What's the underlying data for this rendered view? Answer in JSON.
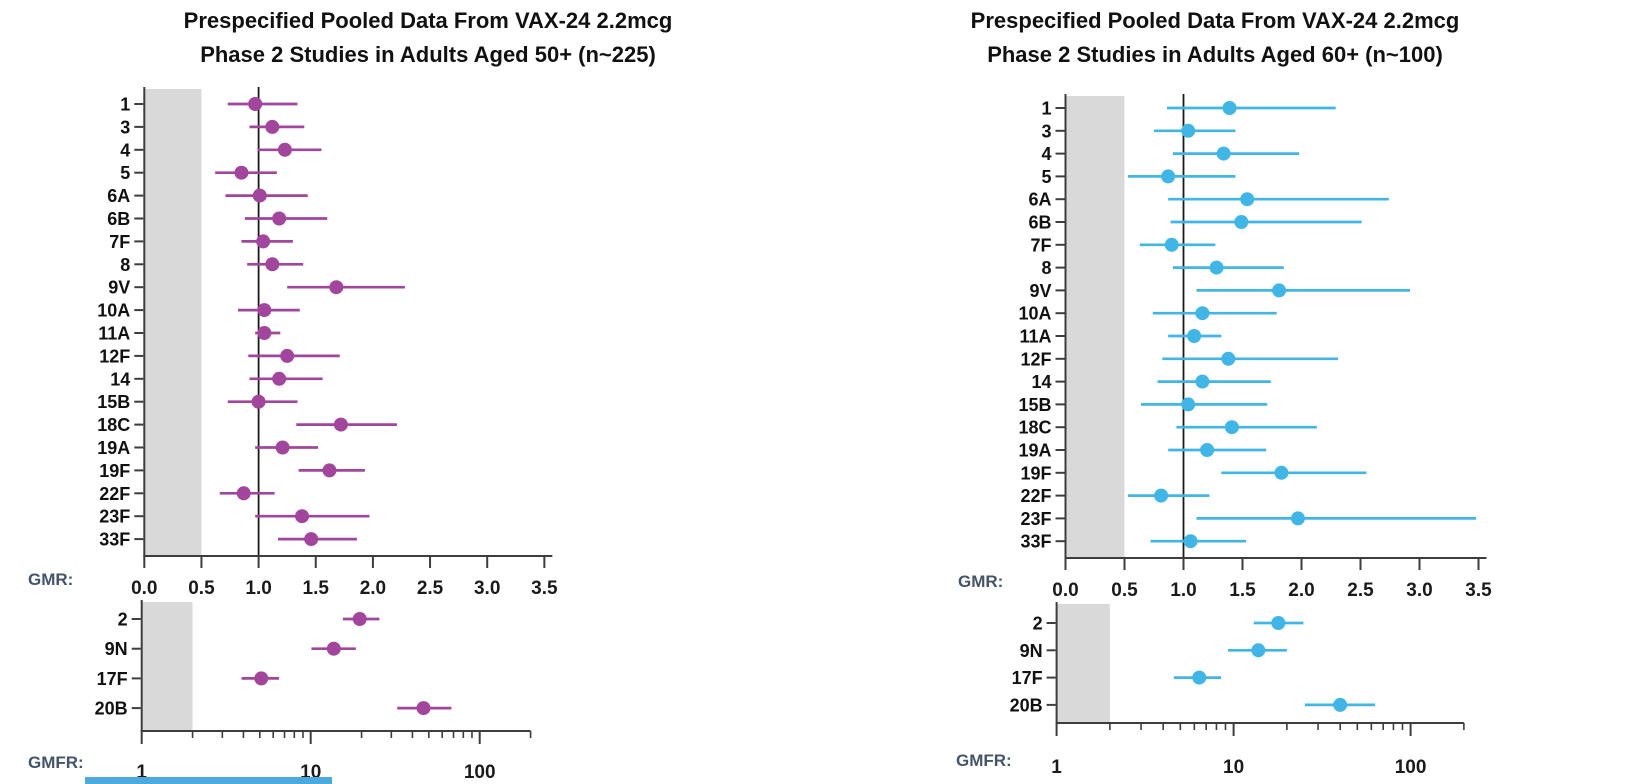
{
  "page": {
    "background": "#ffffff"
  },
  "charts": [
    {
      "title_line1": "Prespecified Pooled Data From VAX-24 2.2mcg",
      "title_line2": "Phase 2 Studies in Adults Aged 50+ (n~225)",
      "gmr_label": "GMR:",
      "gmfr_label": "GMFR:"
    },
    {
      "title_line1": "Prespecified Pooled Data From VAX-24 2.2mcg",
      "title_line2": "Phase 2 Studies in Adults Aged 60+ (n~100)",
      "gmr_label": "GMR:",
      "gmfr_label": "GMFR:"
    }
  ],
  "colors": {
    "left_accent": "#A2469D",
    "right_accent": "#41B6E6",
    "shaded_band": "#D9D9D9",
    "axis": "#3D3D3D",
    "reference_line": "#1A1A1A",
    "tick_text": "#1A1A1A",
    "category_text": "#111111",
    "axis_caption_text": "#44546A",
    "bottom_bar": "#4DA8DC"
  },
  "chart_data": [
    {
      "panel": "left-top",
      "type": "scatter",
      "title": "Prespecified Pooled Data From VAX-24 2.2mcg Phase 2 Studies in Adults Aged 50+ (n~225)",
      "xlabel": "GMR:",
      "xscale": "linear",
      "xlim": [
        0,
        3.5
      ],
      "xticks": [
        "0.0",
        "0.5",
        "1.0",
        "1.5",
        "2.0",
        "2.5",
        "3.0",
        "3.5"
      ],
      "shaded_region": [
        0,
        0.5
      ],
      "reference_line": 1.0,
      "categories": [
        "1",
        "3",
        "4",
        "5",
        "6A",
        "6B",
        "7F",
        "8",
        "9V",
        "10A",
        "11A",
        "12F",
        "14",
        "15B",
        "18C",
        "19A",
        "19F",
        "22F",
        "23F",
        "33F"
      ],
      "values": [
        0.97,
        1.12,
        1.23,
        0.85,
        1.01,
        1.18,
        1.04,
        1.12,
        1.68,
        1.05,
        1.05,
        1.25,
        1.18,
        1.0,
        1.72,
        1.21,
        1.62,
        0.87,
        1.38,
        1.46
      ],
      "ci_low": [
        0.73,
        0.92,
        0.99,
        0.62,
        0.71,
        0.88,
        0.85,
        0.9,
        1.25,
        0.82,
        0.97,
        0.91,
        0.92,
        0.73,
        1.33,
        0.97,
        1.35,
        0.66,
        0.97,
        1.17
      ],
      "ci_high": [
        1.34,
        1.4,
        1.55,
        1.16,
        1.43,
        1.6,
        1.3,
        1.39,
        2.28,
        1.36,
        1.19,
        1.71,
        1.56,
        1.34,
        2.21,
        1.52,
        1.93,
        1.14,
        1.97,
        1.86
      ]
    },
    {
      "panel": "left-bottom",
      "type": "scatter",
      "xlabel": "GMFR:",
      "xscale": "log",
      "xlim": [
        1,
        200
      ],
      "xticks": [
        "1",
        "10",
        "100"
      ],
      "minor_ticks": [
        2,
        3,
        4,
        5,
        6,
        7,
        8,
        9,
        20,
        30,
        40,
        50,
        60,
        70,
        80,
        90,
        200
      ],
      "shaded_region": [
        1,
        2
      ],
      "categories": [
        "2",
        "9N",
        "17F",
        "20B"
      ],
      "values": [
        19.5,
        13.7,
        5.1,
        46.5
      ],
      "ci_low": [
        15.5,
        10.1,
        3.9,
        32.5
      ],
      "ci_high": [
        25.5,
        18.5,
        6.5,
        68.0
      ]
    },
    {
      "panel": "right-top",
      "type": "scatter",
      "title": "Prespecified Pooled Data From VAX-24 2.2mcg Phase 2 Studies in Adults Aged 60+ (n~100)",
      "xlabel": "GMR:",
      "xscale": "linear",
      "xlim": [
        0,
        3.5
      ],
      "xticks": [
        "0.0",
        "0.5",
        "1.0",
        "1.5",
        "2.0",
        "2.5",
        "3.0",
        "3.5"
      ],
      "shaded_region": [
        0,
        0.5
      ],
      "reference_line": 1.0,
      "categories": [
        "1",
        "3",
        "4",
        "5",
        "6A",
        "6B",
        "7F",
        "8",
        "9V",
        "10A",
        "11A",
        "12F",
        "14",
        "15B",
        "18C",
        "19A",
        "19F",
        "22F",
        "23F",
        "33F"
      ],
      "values": [
        1.39,
        1.04,
        1.34,
        0.87,
        1.54,
        1.49,
        0.9,
        1.28,
        1.81,
        1.16,
        1.09,
        1.38,
        1.16,
        1.04,
        1.41,
        1.2,
        1.83,
        0.81,
        1.97,
        1.06
      ],
      "ci_low": [
        0.86,
        0.75,
        0.91,
        0.53,
        0.87,
        0.89,
        0.63,
        0.91,
        1.11,
        0.74,
        0.87,
        0.82,
        0.78,
        0.64,
        0.94,
        0.87,
        1.32,
        0.53,
        1.11,
        0.72
      ],
      "ci_high": [
        2.29,
        1.44,
        1.98,
        1.44,
        2.74,
        2.51,
        1.27,
        1.85,
        2.92,
        1.79,
        1.32,
        2.31,
        1.74,
        1.71,
        2.13,
        1.7,
        2.55,
        1.22,
        3.48,
        1.53
      ]
    },
    {
      "panel": "right-bottom",
      "type": "scatter",
      "xlabel": "GMFR:",
      "xscale": "log",
      "xlim": [
        1,
        200
      ],
      "xticks": [
        "1",
        "10",
        "100"
      ],
      "minor_ticks": [
        2,
        3,
        4,
        5,
        6,
        7,
        8,
        9,
        20,
        30,
        40,
        50,
        60,
        70,
        80,
        90,
        200
      ],
      "shaded_region": [
        1,
        2
      ],
      "categories": [
        "2",
        "9N",
        "17F",
        "20B"
      ],
      "values": [
        17.9,
        13.8,
        6.4,
        40.0
      ],
      "ci_low": [
        13.0,
        9.3,
        4.6,
        25.3
      ],
      "ci_high": [
        24.8,
        20.0,
        8.5,
        63.0
      ]
    }
  ]
}
